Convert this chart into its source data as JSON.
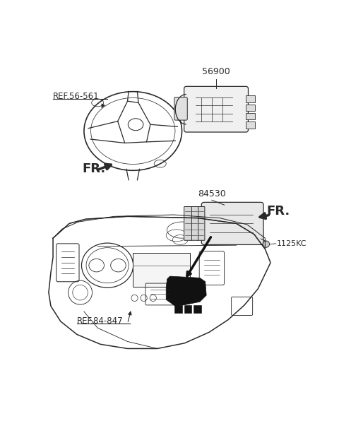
{
  "bg_color": "#ffffff",
  "line_color": "#2a2a2a",
  "labels": {
    "ref_56_561": "REF.56-561",
    "part_56900": "56900",
    "fr_top": "FR.",
    "part_84530": "84530",
    "fr_bottom": "FR.",
    "part_1125kc": "1125KC",
    "ref_84_847": "REF.84-847"
  }
}
